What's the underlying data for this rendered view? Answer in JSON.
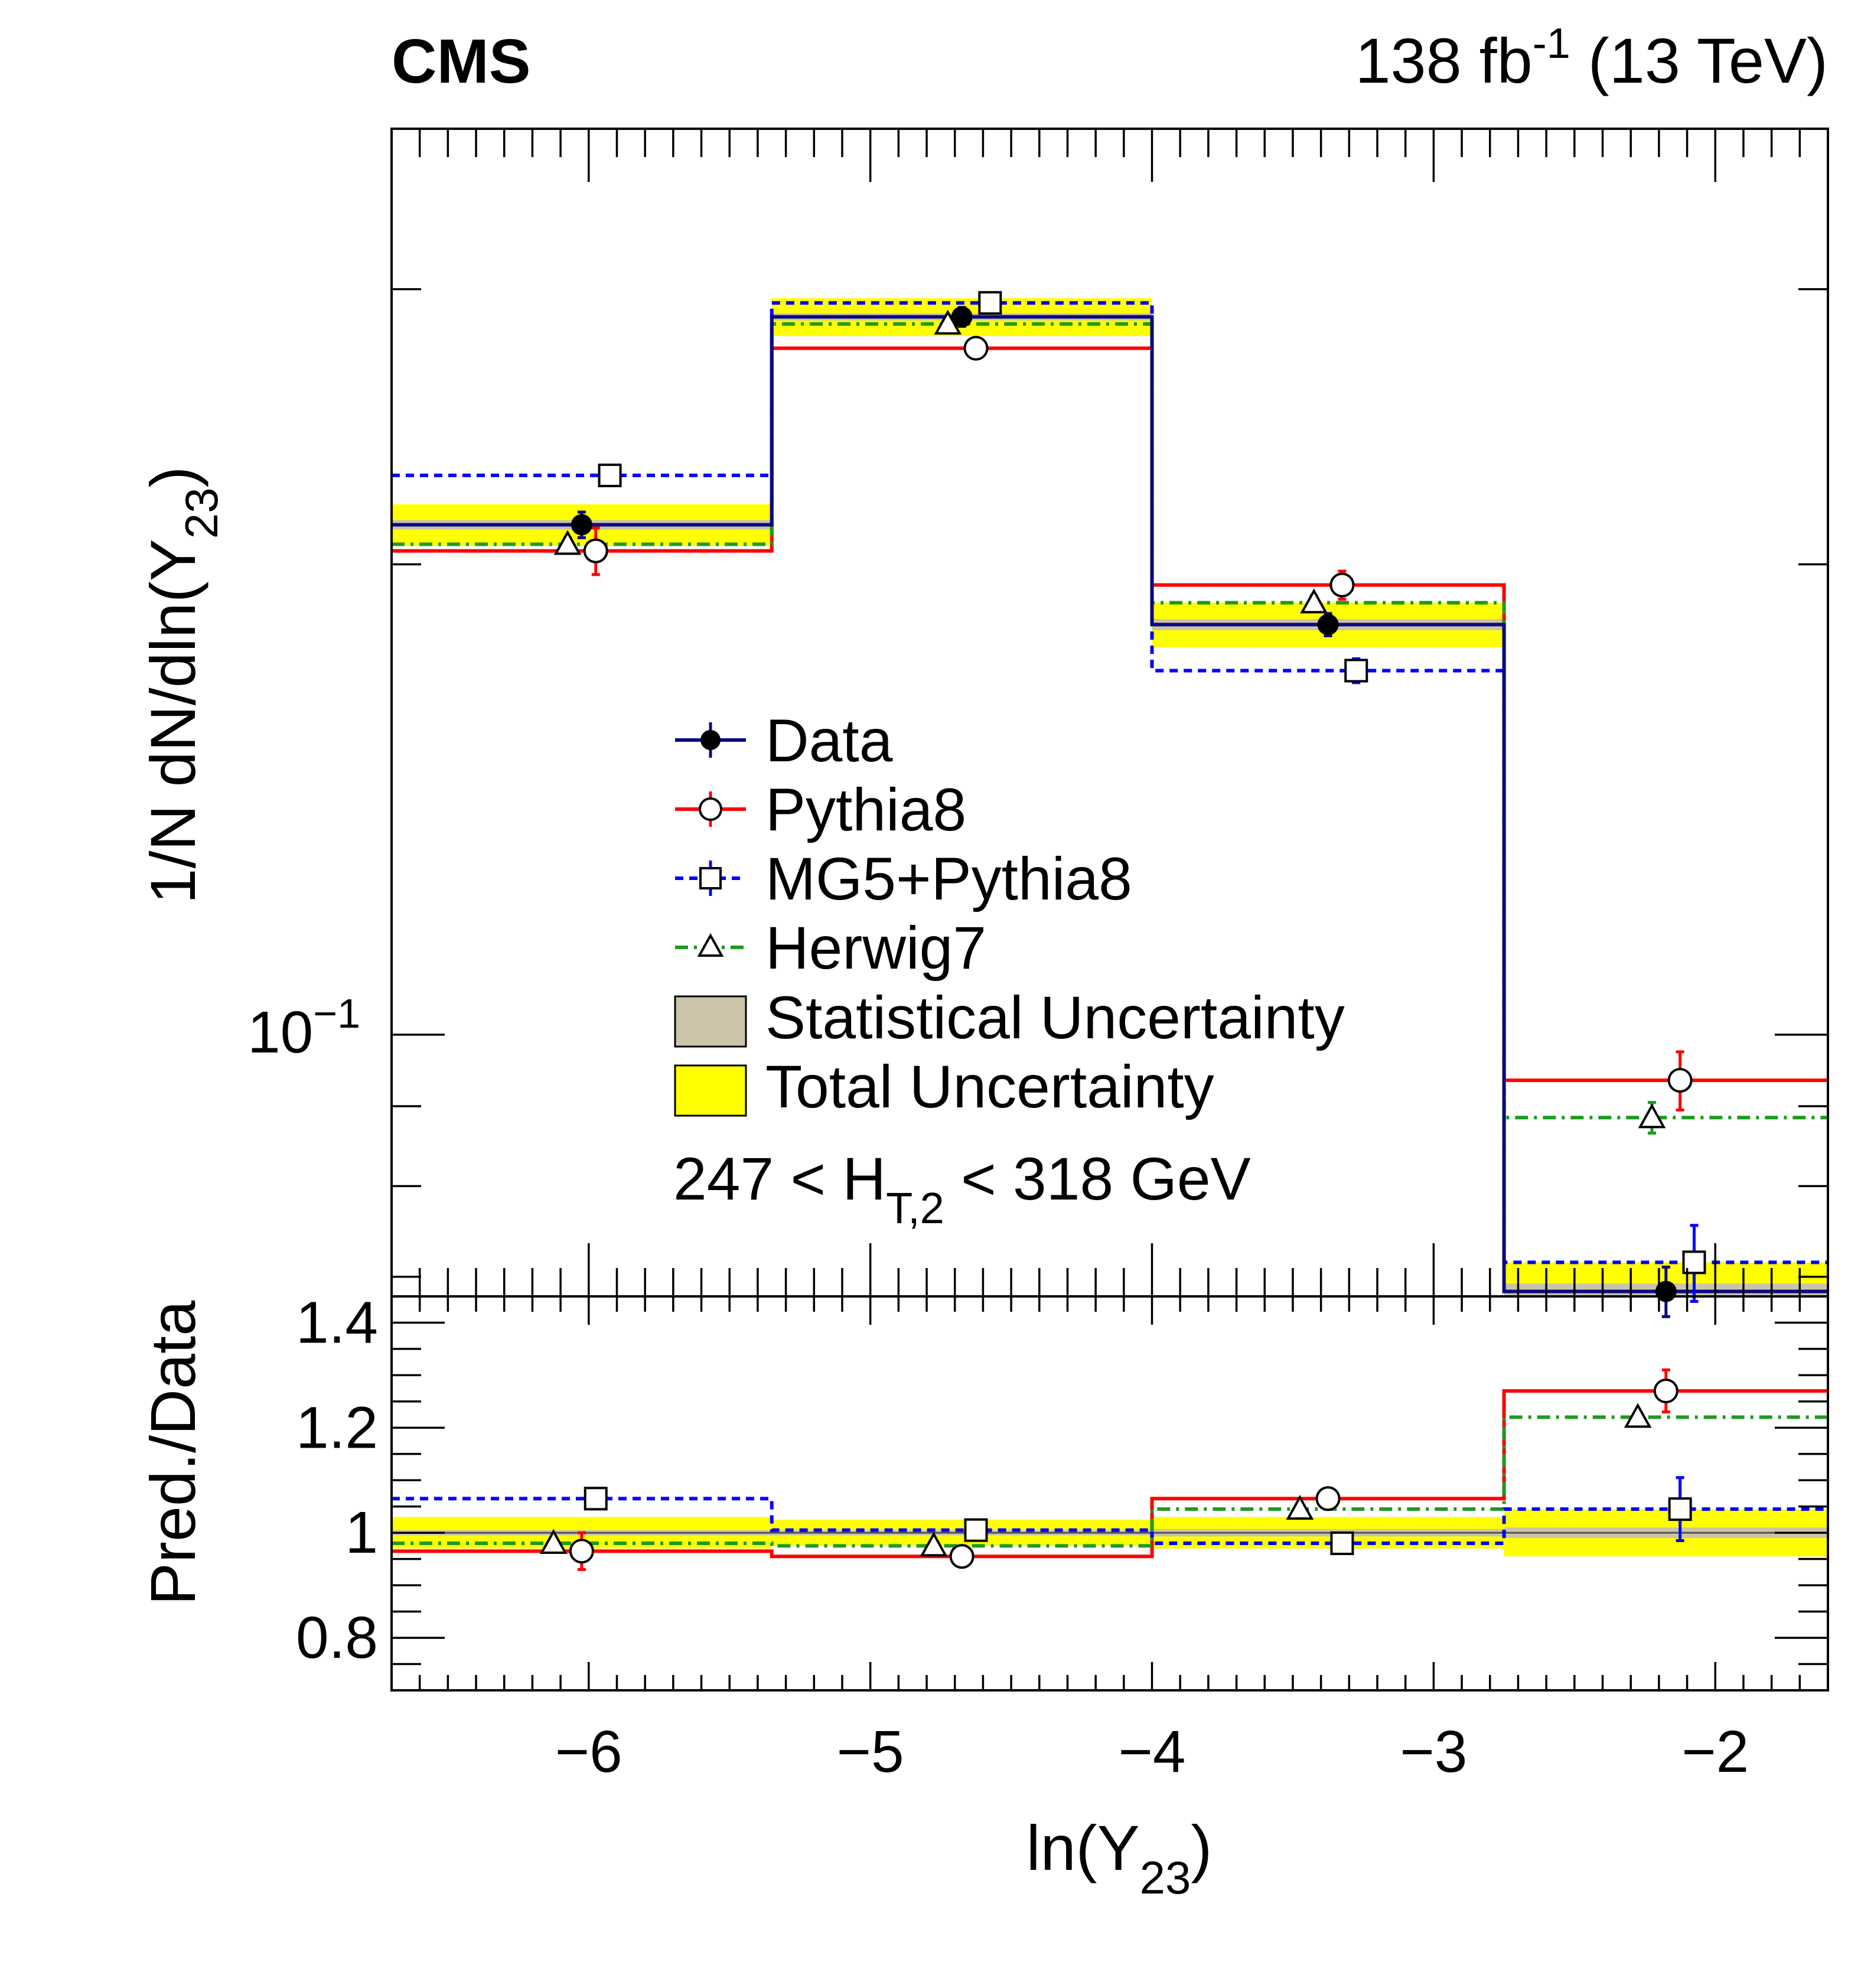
{
  "header": {
    "experiment": "CMS",
    "lumi_prefix": "138 fb",
    "lumi_sup": "-1",
    "lumi_suffix": " (13 TeV)"
  },
  "annotation": {
    "prefix": "247 < H",
    "subscript": "T,2",
    "suffix": " < 318 GeV"
  },
  "colors": {
    "data": "#000000",
    "data_line": "#0a0a82",
    "pythia8": "#ff0000",
    "mg5_pythia8": "#0000ff",
    "herwig7": "#1e9a1e",
    "stat_band": "#cbc4a8",
    "total_band": "#ffff00"
  },
  "chart_data": {
    "type": "histogram-step",
    "xlim": [
      -6.7,
      -1.6
    ],
    "bin_edges": [
      -6.7,
      -5.35,
      -4.0,
      -2.75,
      -1.6
    ],
    "xticks": [
      -6,
      -5,
      -4,
      -3,
      -2
    ],
    "xtick_labels": [
      "−6",
      "−5",
      "−4",
      "−3",
      "−2"
    ],
    "xlabel": "ln(Y",
    "xlabel_sub": "23",
    "xlabel_end": ")",
    "upper": {
      "ylabel": "1/N dN/dln(Y",
      "ylabel_sub": "23",
      "ylabel_end": ")",
      "yscale": "log",
      "ylim": [
        0.068,
        0.38
      ],
      "major_tick": 0.1,
      "major_tick_label_base": "10",
      "major_tick_label_exp": "−1",
      "series": [
        {
          "name": "Data",
          "values": [
            0.212,
            0.288,
            0.183,
            0.0685
          ],
          "errors": [
            0.004,
            0.004,
            0.003,
            0.0025
          ],
          "total_unc": [
            0.0065,
            0.008,
            0.006,
            0.003
          ],
          "stat_unc": [
            0.0015,
            0.0015,
            0.0015,
            0.0008
          ]
        },
        {
          "name": "Pythia8",
          "values": [
            0.204,
            0.275,
            0.194,
            0.0935
          ],
          "errors": [
            0.007,
            0.004,
            0.004,
            0.004
          ]
        },
        {
          "name": "MG5+Pythia8",
          "values": [
            0.228,
            0.294,
            0.171,
            0.0715
          ],
          "errors": [
            0.003,
            0.003,
            0.003,
            0.004
          ]
        },
        {
          "name": "Herwig7",
          "values": [
            0.206,
            0.285,
            0.189,
            0.0885
          ],
          "errors": [
            0.002,
            0.002,
            0.002,
            0.002
          ]
        }
      ]
    },
    "ratio": {
      "ylabel": "Pred./Data",
      "ylim": [
        0.7,
        1.45
      ],
      "yticks": [
        0.8,
        1.0,
        1.2,
        1.4
      ],
      "ytick_labels": [
        "0.8",
        "1",
        "1.2",
        "1.4"
      ],
      "series": [
        {
          "name": "Pythia8",
          "values": [
            0.965,
            0.955,
            1.065,
            1.27
          ],
          "errors": [
            0.035,
            0.01,
            0.02,
            0.04
          ]
        },
        {
          "name": "MG5+Pythia8",
          "values": [
            1.065,
            1.005,
            0.98,
            1.045
          ],
          "errors": [
            0.01,
            0.01,
            0.01,
            0.06
          ]
        },
        {
          "name": "Herwig7",
          "values": [
            0.98,
            0.975,
            1.045,
            1.22
          ],
          "errors": [
            0.005,
            0.005,
            0.005,
            0.005
          ]
        }
      ],
      "total_unc": [
        0.03,
        0.025,
        0.03,
        0.045
      ],
      "stat_unc": [
        0.005,
        0.005,
        0.007,
        0.01
      ]
    },
    "legend": {
      "placement": "center",
      "entries": [
        "Data",
        "Pythia8",
        "MG5+Pythia8",
        "Herwig7",
        "Statistical Uncertainty",
        "Total Uncertainty"
      ]
    }
  }
}
